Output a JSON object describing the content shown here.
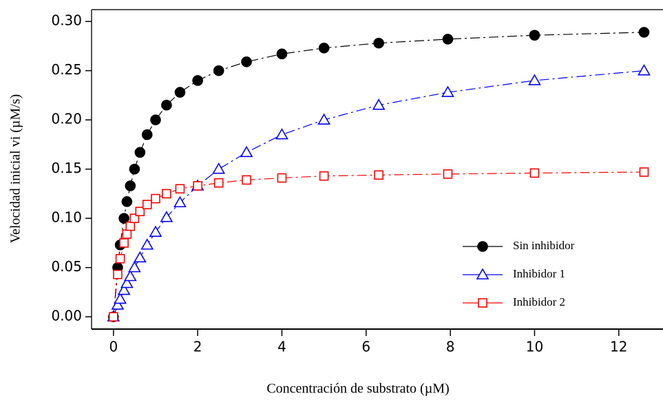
{
  "chart_data": {
    "type": "line",
    "xlabel": "Concentración de substrato (µM)",
    "ylabel": "Velocidad inicial vi (µM/s)",
    "x": [
      0,
      0.1,
      0.16,
      0.25,
      0.32,
      0.4,
      0.5,
      0.63,
      0.8,
      1.0,
      1.26,
      1.58,
      2.0,
      2.5,
      3.16,
      4.0,
      5.0,
      6.3,
      7.94,
      10,
      12.6
    ],
    "series": [
      {
        "name": "Sin inhibidor",
        "color": "#000000",
        "marker": "circle",
        "marker_filled": true,
        "values": [
          0,
          0.05,
          0.073,
          0.1,
          0.117,
          0.133,
          0.15,
          0.167,
          0.185,
          0.2,
          0.215,
          0.228,
          0.24,
          0.25,
          0.259,
          0.267,
          0.273,
          0.278,
          0.282,
          0.286,
          0.289
        ]
      },
      {
        "name": "Inhibidor 1",
        "color": "#0000ff",
        "marker": "triangle",
        "marker_filled": false,
        "values": [
          0,
          0.012,
          0.018,
          0.027,
          0.034,
          0.041,
          0.05,
          0.06,
          0.073,
          0.086,
          0.101,
          0.116,
          0.133,
          0.15,
          0.167,
          0.185,
          0.2,
          0.215,
          0.228,
          0.24,
          0.25
        ]
      },
      {
        "name": "Inhibidor 2",
        "color": "#ff0000",
        "marker": "square",
        "marker_filled": false,
        "values": [
          0,
          0.043,
          0.059,
          0.075,
          0.084,
          0.092,
          0.1,
          0.107,
          0.114,
          0.12,
          0.125,
          0.13,
          0.133,
          0.136,
          0.139,
          0.141,
          0.143,
          0.144,
          0.145,
          0.146,
          0.147
        ]
      }
    ],
    "xlim": [
      -0.52,
      13.05
    ],
    "ylim": [
      -0.0125,
      0.312
    ],
    "xticks": [
      0,
      2,
      4,
      6,
      8,
      10,
      12
    ],
    "yticks": [
      {
        "value": 0,
        "label": "0.00"
      },
      {
        "value": 0.05,
        "label": "0.05"
      },
      {
        "value": 0.1,
        "label": "0.10"
      },
      {
        "value": 0.15,
        "label": "0.15"
      },
      {
        "value": 0.2,
        "label": "0.20"
      },
      {
        "value": 0.25,
        "label": "0.25"
      },
      {
        "value": 0.3,
        "label": "0.30"
      }
    ],
    "legend": "lower right",
    "grid": false
  }
}
